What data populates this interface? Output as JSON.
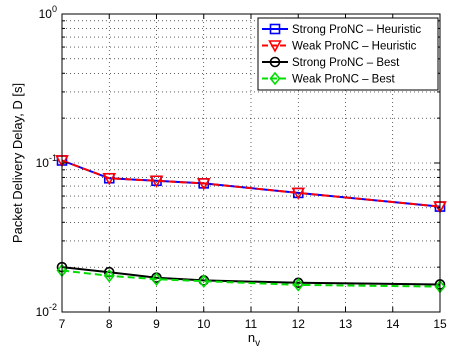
{
  "chart_data": {
    "type": "line",
    "title": "",
    "xlabel": "n_v",
    "xlabel_main": "n",
    "xlabel_sub": "v",
    "ylabel": "Packet Delivery Delay, D [s]",
    "xlim": [
      7,
      15
    ],
    "ylim": [
      0.01,
      1
    ],
    "yscale": "log",
    "grid": true,
    "legend_position": "top-right",
    "x_ticks": [
      7,
      8,
      9,
      10,
      11,
      12,
      13,
      14,
      15
    ],
    "x_tick_labels": [
      "7",
      "8",
      "9",
      "10",
      "11",
      "12",
      "13",
      "14",
      "15"
    ],
    "y_ticks": [
      {
        "base": "10",
        "exp": "-2",
        "value": 0.01
      },
      {
        "base": "10",
        "exp": "-1",
        "value": 0.1
      },
      {
        "base": "10",
        "exp": "0",
        "value": 1
      }
    ],
    "x": [
      7,
      8,
      9,
      10,
      12,
      15
    ],
    "series": [
      {
        "name": "Strong ProNC – Heuristic",
        "color": "#0000ff",
        "dash": "solid",
        "marker": "square",
        "values": [
          0.104,
          0.079,
          0.076,
          0.073,
          0.063,
          0.051
        ]
      },
      {
        "name": "Weak ProNC – Heuristic",
        "color": "#ff0000",
        "dash": "dashed",
        "marker": "triangle-down",
        "values": [
          0.104,
          0.079,
          0.076,
          0.073,
          0.063,
          0.051
        ]
      },
      {
        "name": "Strong ProNC – Best",
        "color": "#000000",
        "dash": "solid",
        "marker": "circle",
        "values": [
          0.02,
          0.0185,
          0.017,
          0.0163,
          0.0157,
          0.0153
        ]
      },
      {
        "name": "Weak ProNC – Best",
        "color": "#00dd00",
        "dash": "dashed",
        "marker": "diamond",
        "values": [
          0.019,
          0.0175,
          0.0166,
          0.0161,
          0.0152,
          0.0148
        ]
      }
    ]
  }
}
